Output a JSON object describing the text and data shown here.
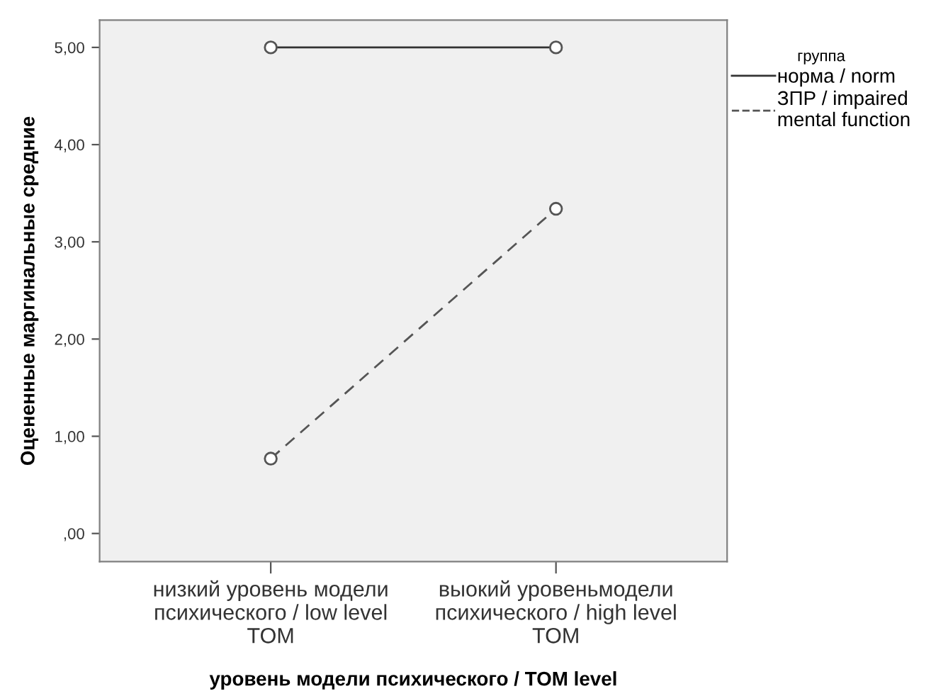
{
  "chart_data": {
    "type": "line",
    "xlabel": "уровень модели психического / TOM level",
    "ylabel": "Оцененные маргинальные средние",
    "legend_title": "группа",
    "categories": [
      "низкий уровень модели\nпсихического / low level\nTOM",
      "выокий уровеньмодели\nпсихического / high level\nTOM"
    ],
    "series": [
      {
        "name": "норма / norm",
        "color": "#333333",
        "values": [
          5.0,
          5.0
        ],
        "line_style": "solid"
      },
      {
        "name": "ЗПР / impaired\nmental function",
        "color": "#555555",
        "values": [
          0.77,
          3.34
        ],
        "line_style": "dashed"
      }
    ],
    "ylim": [
      -0.29,
      5.28
    ],
    "yticks": [
      {
        "value": 0,
        "label": ",00"
      },
      {
        "value": 1,
        "label": "1,00"
      },
      {
        "value": 2,
        "label": "2,00"
      },
      {
        "value": 3,
        "label": "3,00"
      },
      {
        "value": 4,
        "label": "4,00"
      },
      {
        "value": 5,
        "label": "5,00"
      }
    ],
    "marker": "circle",
    "grid": false,
    "legend": "top right"
  }
}
